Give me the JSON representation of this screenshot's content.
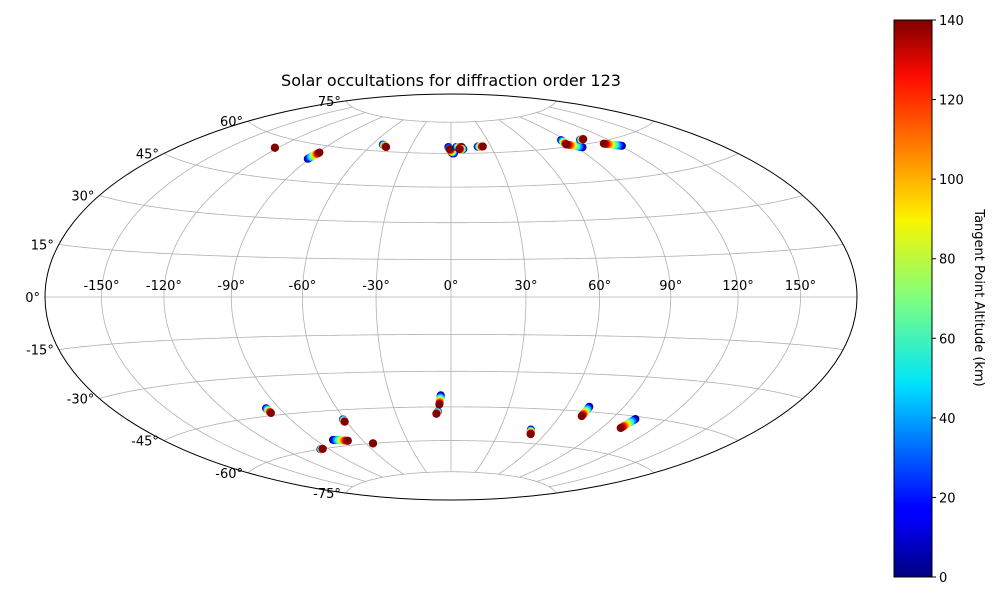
{
  "chart_data": {
    "type": "scatter",
    "projection": "hammer",
    "title": "Solar occultations for diffraction order 123",
    "lon_ticks": [
      {
        "value": -150,
        "label": "-150°"
      },
      {
        "value": -120,
        "label": "-120°"
      },
      {
        "value": -90,
        "label": "-90°"
      },
      {
        "value": -60,
        "label": "-60°"
      },
      {
        "value": -30,
        "label": "-30°"
      },
      {
        "value": 0,
        "label": "0°"
      },
      {
        "value": 30,
        "label": "30°"
      },
      {
        "value": 60,
        "label": "60°"
      },
      {
        "value": 90,
        "label": "90°"
      },
      {
        "value": 120,
        "label": "120°"
      },
      {
        "value": 150,
        "label": "150°"
      }
    ],
    "lat_ticks": [
      {
        "value": 75,
        "label": "75°"
      },
      {
        "value": 60,
        "label": "60°"
      },
      {
        "value": 45,
        "label": "45°"
      },
      {
        "value": 30,
        "label": "30°"
      },
      {
        "value": 15,
        "label": "15°"
      },
      {
        "value": 0,
        "label": "0°"
      },
      {
        "value": -15,
        "label": "-15°"
      },
      {
        "value": -30,
        "label": "-30°"
      },
      {
        "value": -45,
        "label": "-45°"
      },
      {
        "value": -60,
        "label": "-60°"
      },
      {
        "value": -75,
        "label": "-75°"
      }
    ],
    "grid": true,
    "colorbar": {
      "label": "Tangent Point Altitude (km)",
      "range": [
        0,
        140
      ],
      "colormap": "jet",
      "ticks": [
        {
          "value": 0,
          "label": "0"
        },
        {
          "value": 20,
          "label": "20"
        },
        {
          "value": 40,
          "label": "40"
        },
        {
          "value": 60,
          "label": "60"
        },
        {
          "value": 80,
          "label": "80"
        },
        {
          "value": 100,
          "label": "100"
        },
        {
          "value": 120,
          "label": "120"
        },
        {
          "value": 140,
          "label": "140"
        }
      ]
    },
    "tracks": [
      {
        "lon_start": -122,
        "lat_start": 56,
        "lon_end": -122,
        "lat_end": 56
      },
      {
        "lon_start": -91,
        "lat_start": 54,
        "lon_end": -89,
        "lat_end": 57
      },
      {
        "lon_start": -52,
        "lat_start": 63,
        "lon_end": -48,
        "lat_end": 62
      },
      {
        "lon_start": -2,
        "lat_start": 63,
        "lon_end": 1,
        "lat_end": 60
      },
      {
        "lon_start": 2,
        "lat_start": 60,
        "lon_end": -1,
        "lat_end": 62
      },
      {
        "lon_start": 4,
        "lat_start": 63,
        "lon_end": 8,
        "lat_end": 63
      },
      {
        "lon_start": 9,
        "lat_start": 62,
        "lon_end": 6,
        "lat_end": 62
      },
      {
        "lon_start": 20,
        "lat_start": 63,
        "lon_end": 24,
        "lat_end": 63
      },
      {
        "lon_start": 87,
        "lat_start": 63,
        "lon_end": 86,
        "lat_end": 61
      },
      {
        "lon_start": 94,
        "lat_start": 59,
        "lon_end": 86,
        "lat_end": 61
      },
      {
        "lon_start": 101,
        "lat_start": 62,
        "lon_end": 104,
        "lat_end": 62
      },
      {
        "lon_start": 121,
        "lat_start": 57,
        "lon_end": 112,
        "lat_end": 59
      },
      {
        "lon_start": -97,
        "lat_start": -42,
        "lon_end": -97,
        "lat_end": -44
      },
      {
        "lon_start": -96,
        "lat_start": -60,
        "lon_end": -94,
        "lat_end": -60
      },
      {
        "lon_start": -79,
        "lat_start": -57,
        "lon_end": -70,
        "lat_end": -58
      },
      {
        "lon_start": -61,
        "lat_start": -49,
        "lon_end": -61,
        "lat_end": -50
      },
      {
        "lon_start": -55,
        "lat_start": -60,
        "lon_end": -55,
        "lat_end": -60
      },
      {
        "lon_start": -5,
        "lat_start": -40,
        "lon_end": -6,
        "lat_end": -44
      },
      {
        "lon_start": -7,
        "lat_start": -47,
        "lon_end": -8,
        "lat_end": -48
      },
      {
        "lon_start": 49,
        "lat_start": -54,
        "lon_end": 51,
        "lat_end": -56
      },
      {
        "lon_start": 72,
        "lat_start": -43,
        "lon_end": 72,
        "lat_end": -47
      },
      {
        "lon_start": 103,
        "lat_start": -46,
        "lon_end": 101,
        "lat_end": -50
      }
    ]
  }
}
